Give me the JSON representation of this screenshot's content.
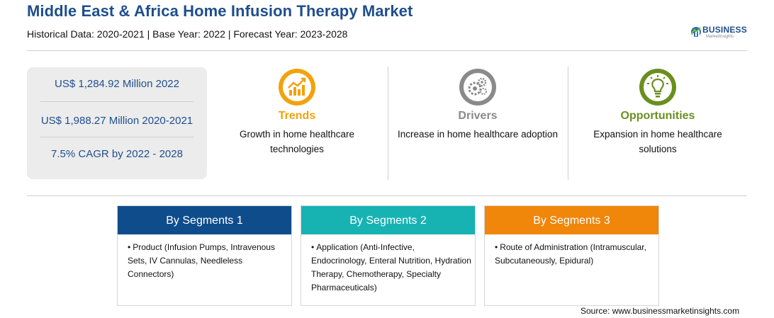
{
  "header": {
    "title": "Middle East & Africa Home Infusion Therapy Market",
    "subtitle": "Historical Data: 2020-2021 | Base Year: 2022 | Forecast Year: 2023-2028"
  },
  "logo": {
    "brand": "BUSINESS",
    "tagline": "MarketInsights",
    "icon": "globe-logo-icon"
  },
  "stats": [
    {
      "text": "US$ 1,284.92 Million 2022"
    },
    {
      "text": "US$ 1,988.27 Million 2020-2021"
    },
    {
      "text": "7.5% CAGR by 2022 - 2028"
    }
  ],
  "columns": [
    {
      "heading": "Trends",
      "description": "Growth in home healthcare technologies",
      "color": "#f2a20c",
      "icon": "trend-chart-icon"
    },
    {
      "heading": "Drivers",
      "description": "Increase in home healthcare adoption",
      "color": "#8a8a8a",
      "icon": "gears-icon"
    },
    {
      "heading": "Opportunities",
      "description": "Expansion in home healthcare solutions",
      "color": "#6a8f1f",
      "icon": "lightbulb-icon"
    }
  ],
  "segments": [
    {
      "title": "By Segments 1",
      "color": "#0f4c8c",
      "bullet": "•",
      "text": "Product (Infusion Pumps, Intravenous Sets, IV Cannulas, Needleless Connectors)"
    },
    {
      "title": "By Segments 2",
      "color": "#17b3b3",
      "bullet": "•",
      "text": "Application (Anti-Infective, Endocrinology, Enteral Nutrition, Hydration Therapy, Chemotherapy, Specialty Pharmaceuticals)"
    },
    {
      "title": "By Segments 3",
      "color": "#f0860a",
      "bullet": "•",
      "text": "Route of Administration (Intramuscular, Subcutaneously, Epidural)"
    }
  ],
  "footer": {
    "source": "Source: www.businessmarketinsights.com"
  }
}
